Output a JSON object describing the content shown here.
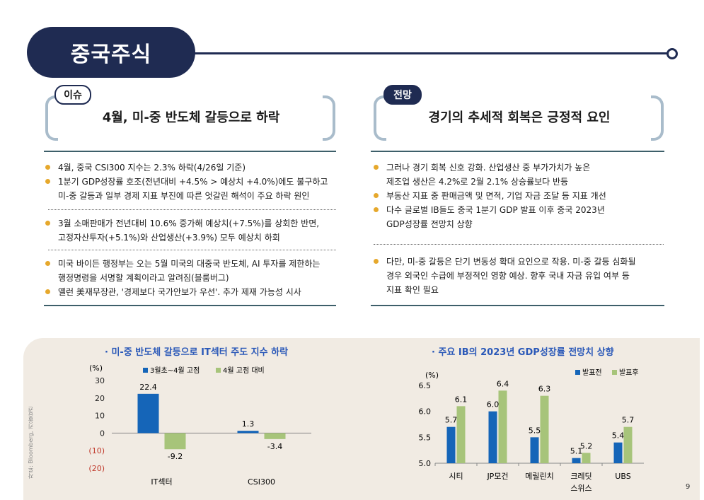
{
  "header": {
    "title": "중국주식"
  },
  "left": {
    "tag": "이슈",
    "heading": "4월, 미-중 반도체 갈등으로 하락",
    "group1": [
      "4월, 중국 CSI300 지수는 2.3% 하락(4/26일 기준)",
      "1분기 GDP성장률 호조(전년대비 +4.5% > 예상치 +4.0%)에도 불구하고",
      "미-중 갈등과 일부 경제 지표 부진에 따른 엇갈린 해석이 주요 하락 원인"
    ],
    "group2": [
      "3월 소매판매가 전년대비 10.6% 증가해 예상치(+7.5%)를 상회한 반면,",
      "고정자산투자(+5.1%)와 산업생산(+3.9%) 모두 예상치 하회"
    ],
    "group3": [
      "미국 바이든 행정부는 오는 5월 미국의 대중국 반도체, AI 투자를 제한하는",
      "행정명령을 서명할 계획이라고 알려짐(블룸버그)",
      "옐런 美재무장관, '경제보다 국가안보가 우선'. 추가 제재 가능성 시사"
    ]
  },
  "right": {
    "tag": "전망",
    "heading": "경기의 추세적 회복은 긍정적 요인",
    "group1": [
      "그러나 경기 회복 신호 강화. 산업생산 중 부가가치가 높은",
      "제조업 생산은 4.2%로 2월 2.1% 상승률보다 반등",
      "부동산 지표 중 판매금액 및 면적, 기업 자금 조달 등 지표 개선",
      "다수 글로벌 IB들도 중국 1분기 GDP 발표 이후 중국 2023년",
      "GDP성장률 전망치 상향"
    ],
    "group2": [
      "다만, 미-중 갈등은 단기 변동성 확대 요인으로 작용. 미-중 갈등 심화될",
      "경우 외국인 수급에 부정적인 영향 예상. 향후 국내 자금 유입 여부 등",
      "지표 확인 필요"
    ]
  },
  "source": "자료: Bloomberg, 키움증권",
  "page_number": "9",
  "chart_data": [
    {
      "type": "bar",
      "title": "· 미-중 반도체 갈등으로 IT섹터 주도 지수 하락",
      "ylabel": "(%)",
      "categories": [
        "IT섹터",
        "CSI300"
      ],
      "series": [
        {
          "name": "3월초~4월 고점",
          "values": [
            22.4,
            1.3
          ],
          "labels": [
            "22.4",
            "1.3"
          ],
          "color": "#1565b8"
        },
        {
          "name": "4월 고점 대비",
          "values": [
            -9.2,
            -3.4
          ],
          "labels": [
            "-9.2",
            "-3.4"
          ],
          "color": "#a7c47a"
        }
      ],
      "ylim": [
        -20,
        30
      ],
      "yticks": [
        "30",
        "20",
        "10",
        "0",
        "(10)",
        "(20)"
      ],
      "ytick_values": [
        30,
        20,
        10,
        0,
        -10,
        -20
      ],
      "legend_position": "top"
    },
    {
      "type": "bar",
      "title": "· 주요 IB의 2023년 GDP성장률 전망치 상향",
      "ylabel": "(%)",
      "categories": [
        "시티",
        "JP모건",
        "메릴린치",
        "크레딧 스위스",
        "UBS"
      ],
      "category_lines": [
        [
          "시티"
        ],
        [
          "JP모건"
        ],
        [
          "메릴린치"
        ],
        [
          "크레딧",
          "스위스"
        ],
        [
          "UBS"
        ]
      ],
      "series": [
        {
          "name": "발표전",
          "values": [
            5.7,
            6.0,
            5.5,
            5.1,
            5.4
          ],
          "labels": [
            "5.7",
            "6.0",
            "5.5",
            "5.1",
            "5.4"
          ],
          "color": "#1565b8"
        },
        {
          "name": "발표후",
          "values": [
            6.1,
            6.4,
            6.3,
            5.2,
            5.7
          ],
          "labels": [
            "6.1",
            "6.4",
            "6.3",
            "5.2",
            "5.7"
          ],
          "color": "#a7c47a"
        }
      ],
      "ylim": [
        5.0,
        6.5
      ],
      "yticks": [
        "6.5",
        "6.0",
        "5.5",
        "5.0"
      ],
      "ytick_values": [
        6.5,
        6.0,
        5.5,
        5.0
      ],
      "legend_position": "top-right"
    }
  ]
}
